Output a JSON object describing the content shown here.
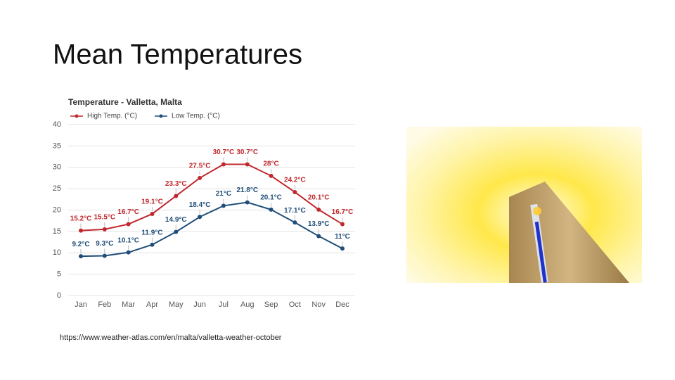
{
  "slide": {
    "title": "Mean Temperatures",
    "source": "https://www.weather-atlas.com/en/malta/valletta-weather-october"
  },
  "chart_data": {
    "type": "line",
    "title": "Temperature - Valletta, Malta",
    "categories": [
      "Jan",
      "Feb",
      "Mar",
      "Apr",
      "May",
      "Jun",
      "Jul",
      "Aug",
      "Sep",
      "Oct",
      "Nov",
      "Dec"
    ],
    "series": [
      {
        "name": "High Temp. (°C)",
        "color": "#c0282d",
        "values": [
          15.2,
          15.5,
          16.7,
          19.1,
          23.3,
          27.5,
          30.7,
          30.7,
          28,
          24.2,
          20.1,
          16.7
        ],
        "value_labels": [
          "15.2°C",
          "15.5°C",
          "16.7°C",
          "19.1°C",
          "23.3°C",
          "27.5°C",
          "30.7°C",
          "30.7°C",
          "28°C",
          "24.2°C",
          "20.1°C",
          "16.7°C"
        ]
      },
      {
        "name": "Low Temp. (°C)",
        "color": "#1f4e79",
        "values": [
          9.2,
          9.3,
          10.1,
          11.9,
          14.9,
          18.4,
          21,
          21.8,
          20.1,
          17.1,
          13.9,
          11
        ],
        "value_labels": [
          "9.2°C",
          "9.3°C",
          "10.1°C",
          "11.9°C",
          "14.9°C",
          "18.4°C",
          "21°C",
          "21.8°C",
          "20.1°C",
          "17.1°C",
          "13.9°C",
          "11°C"
        ]
      }
    ],
    "ylim": [
      0,
      40
    ],
    "yticks": [
      0,
      5,
      10,
      15,
      20,
      25,
      30,
      35,
      40
    ],
    "grid": true,
    "legend": "top-left"
  }
}
